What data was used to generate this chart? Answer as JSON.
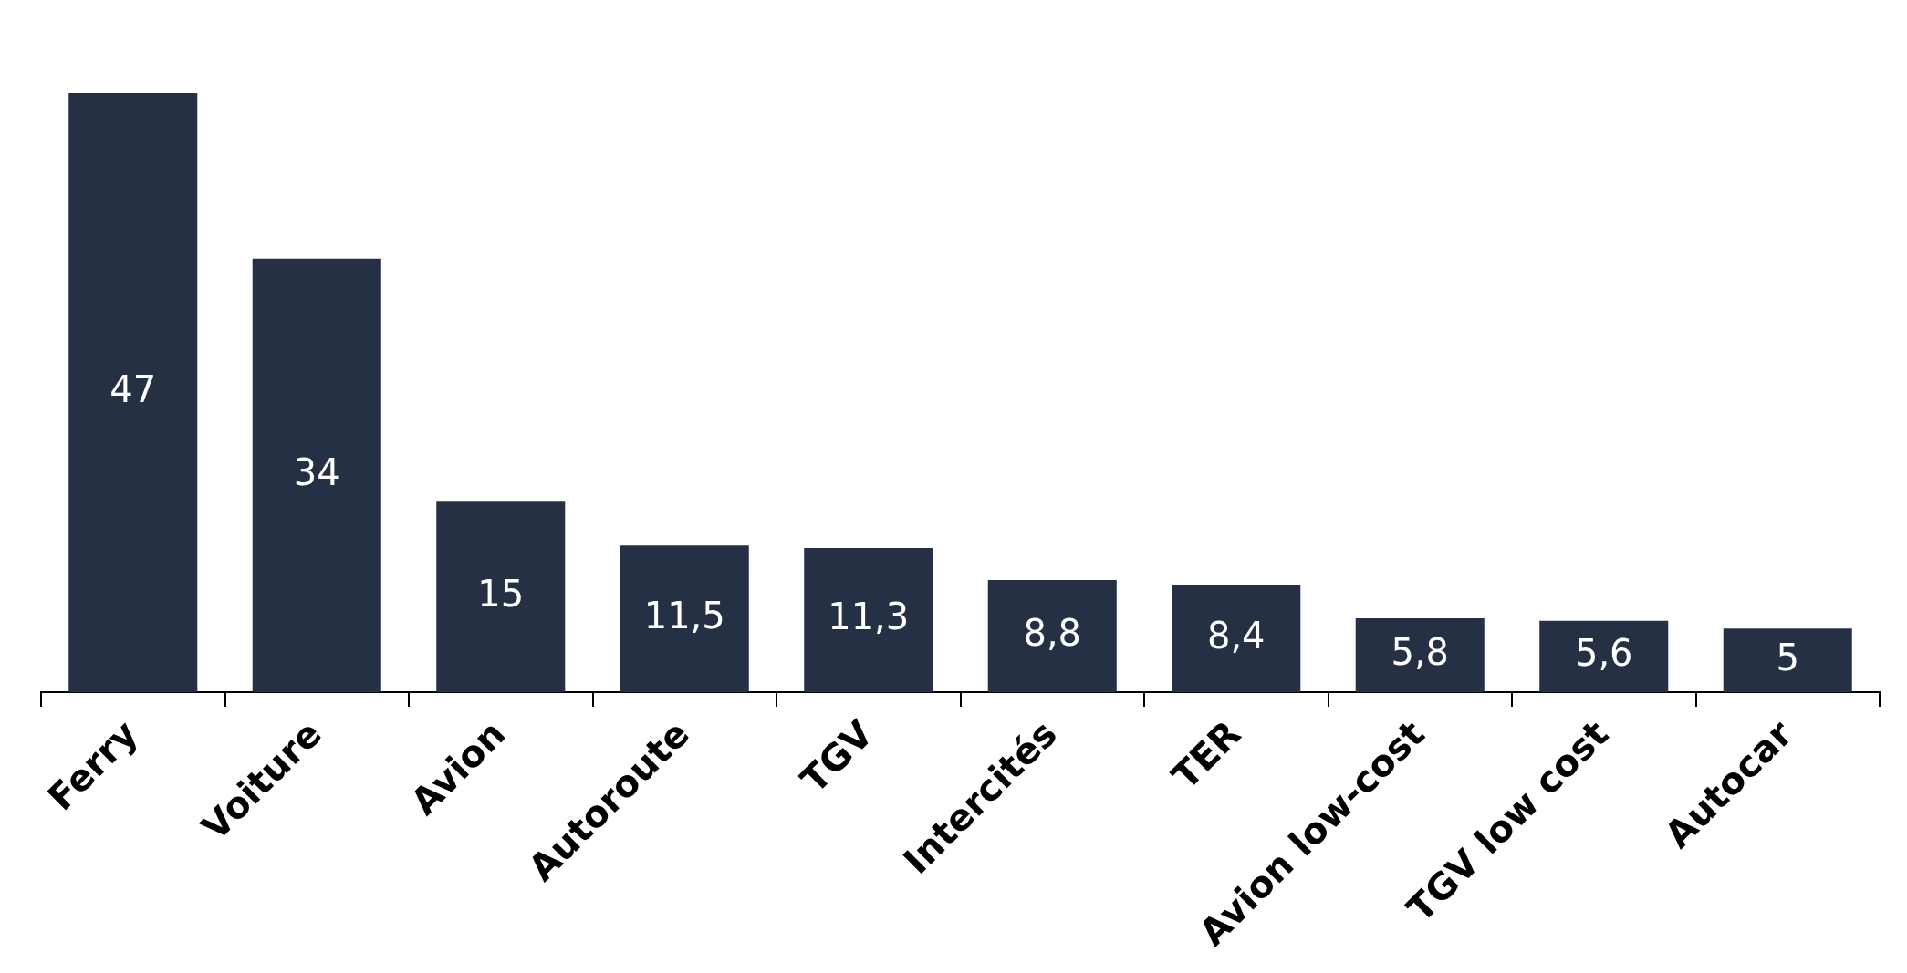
{
  "chart_data": {
    "type": "bar",
    "categories": [
      "Ferry",
      "Voiture",
      "Avion",
      "Autoroute",
      "TGV",
      "Intercités",
      "TER",
      "Avion low-cost",
      "TGV low cost",
      "Autocar"
    ],
    "values": [
      47,
      34,
      15,
      11.5,
      11.3,
      8.8,
      8.4,
      5.8,
      5.6,
      5
    ],
    "value_labels": [
      "47",
      "34",
      "15",
      "11,5",
      "11,3",
      "8,8",
      "8,4",
      "5,8",
      "5,6",
      "5"
    ],
    "color": "#263045"
  }
}
